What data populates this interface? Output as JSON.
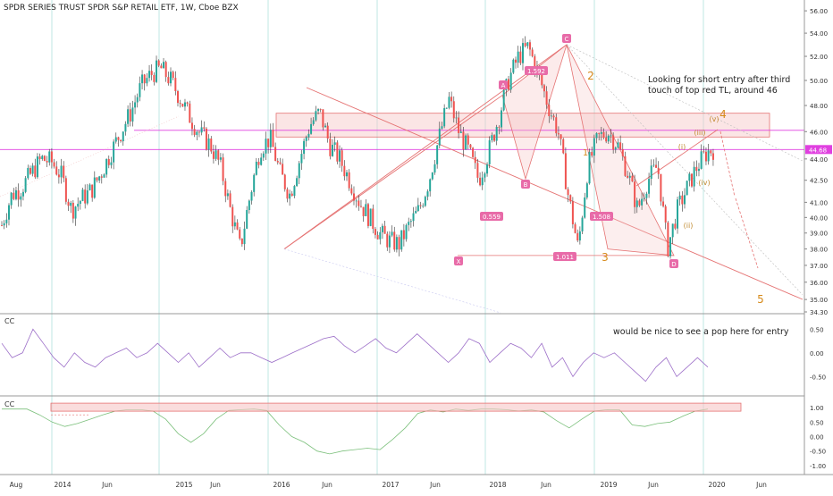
{
  "title": "SPDR SERIES TRUST SPDR S&P RETAIL ETF, 1W, Cboe BZX",
  "colors": {
    "up": "#26a69a",
    "down": "#ef5350",
    "wick": "#444444",
    "pivot_label_bg": "#e86ba8",
    "wave_main": "#d68a1a",
    "wave_sub": "#c08a2e",
    "magenta_line": "#e040e0",
    "pitchfork": "#e57373",
    "zone_fill": "#f6c6c6",
    "cc_line": "#9c6ec8",
    "cc2_line": "#7cc07c",
    "price_tag": "#e040e0",
    "grid": "#eeeeee"
  },
  "chart_data": [
    {
      "type": "candlestick",
      "name": "main-price",
      "x_axis": {
        "labels": [
          "Aug",
          "2014",
          "Jun",
          "2015",
          "Jun",
          "2016",
          "Jun",
          "2017",
          "Jun",
          "2018",
          "Jun",
          "2019",
          "Jun",
          "2020",
          "Jun"
        ]
      },
      "y_axis": {
        "ticks": [
          "56.00",
          "54.00",
          "52.00",
          "50.00",
          "48.00",
          "46.00",
          "44.00",
          "42.50",
          "41.00",
          "40.00",
          "39.00",
          "38.00",
          "37.00",
          "36.00",
          "35.00",
          "34.30"
        ],
        "ylim": [
          34.3,
          56.5
        ],
        "scale": "log"
      },
      "price_tag": "44.68",
      "ohlc_control_points": [
        {
          "t": 0,
          "v": 39.5
        },
        {
          "t": 5,
          "v": 41.5
        },
        {
          "t": 10,
          "v": 42.0
        },
        {
          "t": 15,
          "v": 43.0
        },
        {
          "t": 20,
          "v": 44.0
        },
        {
          "t": 25,
          "v": 43.8
        },
        {
          "t": 30,
          "v": 42.8
        },
        {
          "t": 35,
          "v": 40.5
        },
        {
          "t": 40,
          "v": 41.2
        },
        {
          "t": 45,
          "v": 41.8
        },
        {
          "t": 50,
          "v": 43.0
        },
        {
          "t": 55,
          "v": 44.5
        },
        {
          "t": 60,
          "v": 46.0
        },
        {
          "t": 65,
          "v": 47.5
        },
        {
          "t": 70,
          "v": 49.5
        },
        {
          "t": 75,
          "v": 50.5
        },
        {
          "t": 80,
          "v": 51.0
        },
        {
          "t": 85,
          "v": 50.0
        },
        {
          "t": 90,
          "v": 48.5
        },
        {
          "t": 95,
          "v": 47.0
        },
        {
          "t": 100,
          "v": 45.8
        },
        {
          "t": 105,
          "v": 45.0
        },
        {
          "t": 110,
          "v": 43.5
        },
        {
          "t": 115,
          "v": 40.5
        },
        {
          "t": 120,
          "v": 38.0
        },
        {
          "t": 125,
          "v": 41.5
        },
        {
          "t": 130,
          "v": 44.8
        },
        {
          "t": 135,
          "v": 45.5
        },
        {
          "t": 140,
          "v": 43.0
        },
        {
          "t": 145,
          "v": 41.5
        },
        {
          "t": 150,
          "v": 44.0
        },
        {
          "t": 155,
          "v": 46.5
        },
        {
          "t": 160,
          "v": 47.5
        },
        {
          "t": 165,
          "v": 45.0
        },
        {
          "t": 170,
          "v": 44.0
        },
        {
          "t": 175,
          "v": 42.5
        },
        {
          "t": 180,
          "v": 41.0
        },
        {
          "t": 185,
          "v": 40.0
        },
        {
          "t": 190,
          "v": 39.0
        },
        {
          "t": 195,
          "v": 38.5
        },
        {
          "t": 200,
          "v": 38.3
        },
        {
          "t": 205,
          "v": 39.5
        },
        {
          "t": 210,
          "v": 40.5
        },
        {
          "t": 215,
          "v": 42.5
        },
        {
          "t": 220,
          "v": 45.5
        },
        {
          "t": 225,
          "v": 48.5
        },
        {
          "t": 230,
          "v": 46.0
        },
        {
          "t": 235,
          "v": 44.5
        },
        {
          "t": 240,
          "v": 42.5
        },
        {
          "t": 245,
          "v": 44.5
        },
        {
          "t": 250,
          "v": 47.0
        },
        {
          "t": 255,
          "v": 50.0
        },
        {
          "t": 260,
          "v": 52.0
        },
        {
          "t": 265,
          "v": 52.8
        },
        {
          "t": 270,
          "v": 50.5
        },
        {
          "t": 275,
          "v": 48.0
        },
        {
          "t": 280,
          "v": 46.0
        },
        {
          "t": 285,
          "v": 41.5
        },
        {
          "t": 290,
          "v": 38.0
        },
        {
          "t": 295,
          "v": 43.5
        },
        {
          "t": 300,
          "v": 45.5
        },
        {
          "t": 305,
          "v": 46.0
        },
        {
          "t": 310,
          "v": 45.0
        },
        {
          "t": 315,
          "v": 43.0
        },
        {
          "t": 320,
          "v": 40.5
        },
        {
          "t": 325,
          "v": 42.5
        },
        {
          "t": 330,
          "v": 43.5
        },
        {
          "t": 335,
          "v": 38.0
        },
        {
          "t": 340,
          "v": 40.5
        },
        {
          "t": 345,
          "v": 42.0
        },
        {
          "t": 350,
          "v": 43.5
        },
        {
          "t": 355,
          "v": 44.5
        },
        {
          "t": 358,
          "v": 44.7
        }
      ]
    },
    {
      "type": "line",
      "name": "CC",
      "y_axis": {
        "ticks": [
          "0.50",
          "0.00",
          "-0.50"
        ],
        "ylim": [
          -0.85,
          0.75
        ]
      },
      "values": [
        0.2,
        -0.1,
        0.0,
        0.5,
        0.2,
        -0.1,
        -0.3,
        0.0,
        -0.2,
        -0.3,
        -0.1,
        0.0,
        0.1,
        -0.1,
        0.0,
        0.2,
        0.0,
        -0.2,
        0.0,
        -0.3,
        -0.1,
        0.1,
        -0.1,
        0.0,
        0.0,
        -0.1,
        -0.2,
        -0.1,
        0.0,
        0.1,
        0.2,
        0.3,
        0.35,
        0.15,
        0.0,
        0.15,
        0.3,
        0.1,
        0.0,
        0.2,
        0.4,
        0.2,
        0.0,
        -0.2,
        0.0,
        0.3,
        0.2,
        -0.2,
        0.0,
        0.2,
        0.1,
        -0.1,
        0.2,
        -0.3,
        -0.1,
        -0.5,
        -0.2,
        0.0,
        -0.1,
        0.0,
        -0.2,
        -0.4,
        -0.6,
        -0.3,
        -0.1,
        -0.5,
        -0.3,
        -0.1,
        -0.3
      ]
    },
    {
      "type": "line",
      "name": "CC",
      "y_axis": {
        "ticks": [
          "1.00",
          "0.50",
          "0.00",
          "-0.50",
          "-1.00"
        ],
        "ylim": [
          -1.25,
          1.25
        ]
      },
      "values": [
        0.95,
        0.95,
        0.95,
        0.75,
        0.5,
        0.35,
        0.45,
        0.6,
        0.75,
        0.88,
        0.93,
        0.93,
        0.88,
        0.6,
        0.1,
        -0.2,
        0.1,
        0.6,
        0.9,
        0.93,
        0.95,
        0.9,
        0.4,
        0.0,
        -0.2,
        -0.5,
        -0.6,
        -0.5,
        -0.45,
        -0.4,
        -0.45,
        -0.1,
        0.3,
        0.8,
        0.92,
        0.85,
        0.95,
        0.9,
        0.95,
        0.95,
        0.93,
        0.88,
        0.92,
        0.85,
        0.55,
        0.3,
        0.6,
        0.88,
        0.93,
        0.92,
        0.4,
        0.35,
        0.45,
        0.5,
        0.7,
        0.88,
        0.95
      ]
    }
  ],
  "annotations": {
    "main_note": [
      "Looking for short entry after third",
      "touch of top red TL, around 46"
    ],
    "cc_note": "would be nice to see a pop here for entry",
    "pivot_labels": [
      "C",
      "A",
      "B",
      "X",
      "D"
    ],
    "ratio_labels": [
      "1.592",
      "0.559",
      "1.508",
      "1.011"
    ],
    "wave_labels": [
      "1",
      "2",
      "3",
      "4",
      "5"
    ],
    "subwave_labels": [
      "(i)",
      "(ii)",
      "(iii)",
      "(iv)",
      "(v)"
    ]
  }
}
